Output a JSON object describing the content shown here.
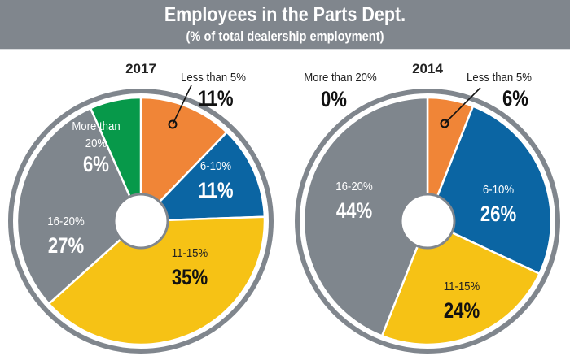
{
  "header": {
    "title": "Employees in the Parts Dept.",
    "subtitle": "(% of total dealership employment)"
  },
  "colors": {
    "less_than_5": "#f08537",
    "6_10": "#0b65a3",
    "11_15": "#f6c215",
    "16_20": "#7f868d",
    "more_than_20": "#07994a",
    "ring": "#80868d"
  },
  "chart_data": [
    {
      "type": "pie",
      "title": "2017",
      "categories": [
        "Less than 5%",
        "6-10%",
        "11-15%",
        "16-20%",
        "More than 20%"
      ],
      "values": [
        11,
        11,
        35,
        27,
        6
      ],
      "labels": [
        "11%",
        "11%",
        "35%",
        "27%",
        "6%"
      ],
      "donut_hole": true,
      "start": "top, clockwise"
    },
    {
      "type": "pie",
      "title": "2014",
      "categories": [
        "Less than 5%",
        "6-10%",
        "11-15%",
        "16-20%",
        "More than 20%"
      ],
      "values": [
        6,
        26,
        24,
        44,
        0
      ],
      "labels": [
        "6%",
        "26%",
        "24%",
        "44%",
        "0%"
      ],
      "donut_hole": true,
      "start": "top, clockwise"
    }
  ]
}
